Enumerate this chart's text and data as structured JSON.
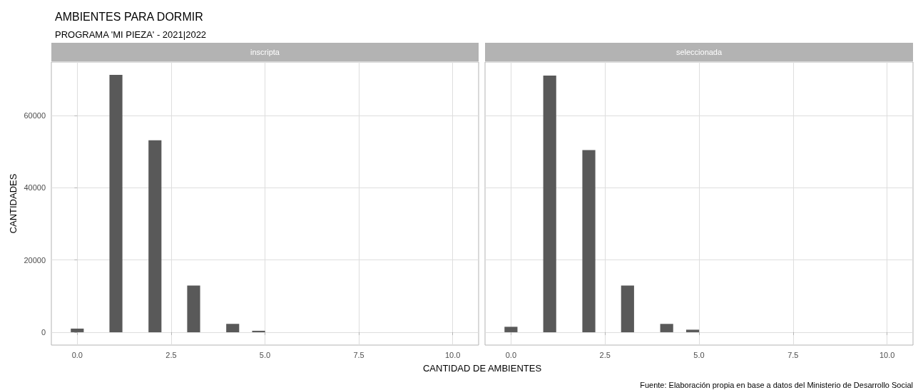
{
  "chart_data": [
    {
      "type": "bar",
      "title": "AMBIENTES PARA DORMIR",
      "subtitle": "PROGRAMA 'MI PIEZA' - 2021|2022",
      "ylabel": "CANTIDADES",
      "annotations": [
        "inscripta"
      ],
      "x": [
        0,
        1.03,
        2.07,
        3.1,
        4.14,
        4.83
      ],
      "values": [
        1000,
        71200,
        53100,
        12900,
        2300,
        400
      ],
      "color": "#595959",
      "xlim": [
        -0.69,
        10.69
      ],
      "xticks": [
        {
          "value": 0,
          "label": "0.0"
        },
        {
          "value": 2.5,
          "label": "2.5"
        },
        {
          "value": 5,
          "label": "5.0"
        },
        {
          "value": 7.5,
          "label": "7.5"
        },
        {
          "value": 10,
          "label": "10.0"
        }
      ],
      "ylim": [
        -3560,
        74760
      ],
      "yticks": [
        0,
        20000,
        40000,
        60000
      ],
      "grid": true
    },
    {
      "type": "bar",
      "xlabel": "CANTIDAD DE AMBIENTES",
      "annotations": [
        "seleccionada",
        "Fuente: Elaboración propia en base a datos del Ministerio de Desarrollo Social"
      ],
      "x": [
        0,
        1.03,
        2.07,
        3.1,
        4.14,
        4.83
      ],
      "values": [
        1500,
        71000,
        50400,
        12900,
        2300,
        700
      ],
      "color": "#595959",
      "xlim": [
        -0.69,
        10.69
      ],
      "xticks": [
        {
          "value": 0,
          "label": "0.0"
        },
        {
          "value": 2.5,
          "label": "2.5"
        },
        {
          "value": 5,
          "label": "5.0"
        },
        {
          "value": 7.5,
          "label": "7.5"
        },
        {
          "value": 10,
          "label": "10.0"
        }
      ],
      "ylim": [
        -3560,
        74760
      ],
      "yticks": [
        0,
        20000,
        40000,
        60000
      ],
      "grid": true,
      "tick_labels": "x"
    }
  ]
}
